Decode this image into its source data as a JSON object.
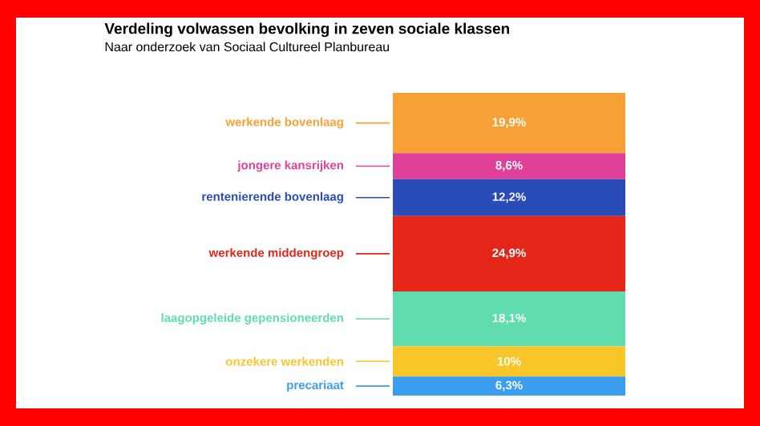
{
  "chart_data": {
    "type": "bar",
    "stacked": true,
    "title": "Verdeling volwassen bevolking in zeven sociale klassen",
    "subtitle": "Naar onderzoek van Sociaal Cultureel Planbureau",
    "categories": [
      null
    ],
    "legend": "left",
    "series": [
      {
        "name": "precariaat",
        "color": "#3a9ded",
        "values": [
          6.3
        ],
        "value_labels": [
          "6,3%"
        ]
      },
      {
        "name": "onzekere werkenden",
        "color": "#f8c629",
        "values": [
          10
        ],
        "value_labels": [
          "10%"
        ]
      },
      {
        "name": "laagopgeleide gepensioneerden",
        "color": "#60dcae",
        "values": [
          18.1
        ],
        "value_labels": [
          "18,1%"
        ]
      },
      {
        "name": "werkende middengroep",
        "color": "#e42618",
        "values": [
          24.9
        ],
        "value_labels": [
          "24,9%"
        ]
      },
      {
        "name": "rentenierende bovenlaag",
        "color": "#2a4cb8",
        "values": [
          12.2
        ],
        "value_labels": [
          "12,2%"
        ]
      },
      {
        "name": "jongere kansrijken",
        "color": "#e0409a",
        "values": [
          8.6
        ],
        "value_labels": [
          "8,6%"
        ]
      },
      {
        "name": "werkende bovenlaag",
        "color": "#f7a035",
        "values": [
          19.9
        ],
        "value_labels": [
          "19,9%"
        ]
      }
    ]
  }
}
